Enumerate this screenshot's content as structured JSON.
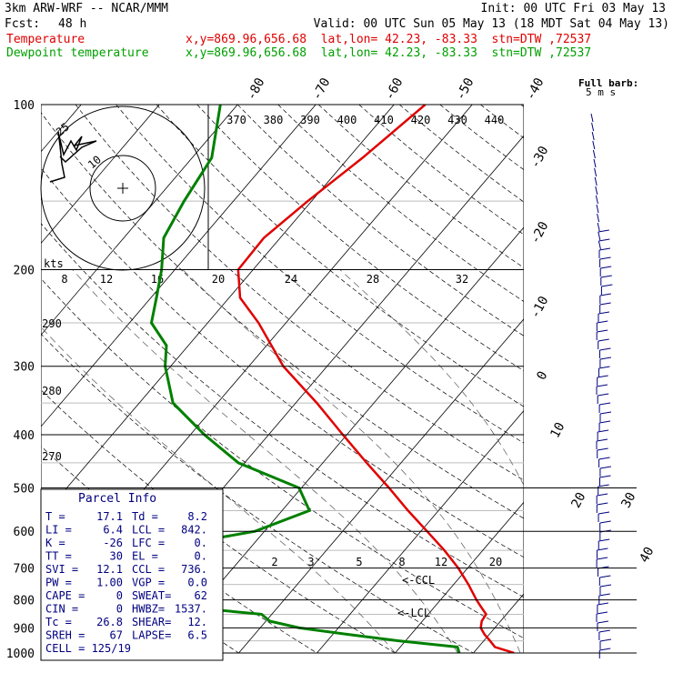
{
  "header": {
    "model": "3km ARW-WRF -- NCAR/MMM",
    "init": "Init: 00 UTC Fri 03 May 13",
    "fcst_label": "Fcst:",
    "fcst_value": "48 h",
    "valid": "Valid: 00 UTC Sun 05 May 13 (18 MDT Sat 04 May 13)",
    "temp_label": "Temperature",
    "dew_label": "Dewpoint temperature",
    "temp_info": "x,y=869.96,656.68  lat,lon= 42.23, -83.33  stn=DTW ,72537",
    "dew_info": "x,y=869.96,656.68  lat,lon= 42.23, -83.33  stn=DTW ,72537"
  },
  "colors": {
    "temperature": "#e00000",
    "dewpoint": "#008000",
    "wind": "#000080"
  },
  "chart_data": {
    "type": "line",
    "title": "",
    "ylabel": "",
    "y_scale": "log-pressure",
    "ylim": [
      1000,
      100
    ],
    "pressure_ticks": [
      "100",
      "200",
      "300",
      "400",
      "500",
      "600",
      "700",
      "800",
      "900",
      "1000"
    ],
    "isotherm_labels": [
      "-80",
      "-70",
      "-60",
      "-50",
      "-40",
      "-30",
      "-20",
      "-10",
      "0",
      "10",
      "20",
      "30",
      "40"
    ],
    "theta_labels": [
      "370",
      "380",
      "390",
      "400",
      "410",
      "420",
      "430",
      "440"
    ],
    "theta_left_labels": [
      "290",
      "280",
      "270"
    ],
    "mixing_ratio_labels": [
      "2",
      "3",
      "5",
      "8",
      "12",
      "20"
    ],
    "series": [
      {
        "name": "Temperature",
        "points": [
          [
            1000,
            15.2
          ],
          [
            975,
            12.1
          ],
          [
            950,
            10.8
          ],
          [
            925,
            9.4
          ],
          [
            900,
            8.2
          ],
          [
            875,
            7.6
          ],
          [
            850,
            7.4
          ],
          [
            825,
            6.0
          ],
          [
            800,
            4.6
          ],
          [
            750,
            1.9
          ],
          [
            700,
            -1.2
          ],
          [
            650,
            -4.9
          ],
          [
            600,
            -9.2
          ],
          [
            550,
            -13.9
          ],
          [
            500,
            -18.8
          ],
          [
            450,
            -24.4
          ],
          [
            400,
            -30.5
          ],
          [
            350,
            -37.3
          ],
          [
            300,
            -45.6
          ],
          [
            250,
            -53.5
          ],
          [
            225,
            -58.6
          ],
          [
            200,
            -61.9
          ],
          [
            175,
            -62.1
          ],
          [
            150,
            -60.5
          ],
          [
            125,
            -58.2
          ],
          [
            100,
            -56.0
          ]
        ]
      },
      {
        "name": "Dewpoint temperature",
        "points": [
          [
            1000,
            8.2
          ],
          [
            975,
            7.3
          ],
          [
            950,
            -0.9
          ],
          [
            925,
            -8.0
          ],
          [
            900,
            -15.0
          ],
          [
            875,
            -19.5
          ],
          [
            850,
            -21.3
          ],
          [
            825,
            -31.6
          ],
          [
            800,
            -43.8
          ],
          [
            750,
            -47.8
          ],
          [
            700,
            -51.7
          ],
          [
            650,
            -43.0
          ],
          [
            600,
            -31.2
          ],
          [
            550,
            -26.5
          ],
          [
            500,
            -30.3
          ],
          [
            450,
            -40.8
          ],
          [
            400,
            -48.2
          ],
          [
            350,
            -55.7
          ],
          [
            300,
            -60.7
          ],
          [
            275,
            -62.8
          ],
          [
            250,
            -67.2
          ],
          [
            225,
            -69.3
          ],
          [
            200,
            -71.7
          ],
          [
            175,
            -74.9
          ],
          [
            150,
            -76.3
          ],
          [
            125,
            -77.5
          ],
          [
            100,
            -82.2
          ]
        ]
      }
    ],
    "hodograph": {
      "unit_label": "kts",
      "ring_labels": [
        "10",
        "25"
      ],
      "speed_scale": [
        "8",
        "12",
        "16",
        "20",
        "24",
        "28",
        "32"
      ]
    },
    "wind_barb_key": "Full barb: 5 m s",
    "parcel_info": {
      "title": "Parcel Info",
      "rows": [
        [
          [
            "T =",
            "17.1"
          ],
          [
            "Td =",
            "8.2"
          ]
        ],
        [
          [
            "LI =",
            "6.4"
          ],
          [
            "LCL =",
            "842."
          ]
        ],
        [
          [
            "K =",
            "-26"
          ],
          [
            "LFC =",
            "0."
          ]
        ],
        [
          [
            "TT =",
            "30"
          ],
          [
            "EL =",
            "0."
          ]
        ],
        [
          [
            "SVI =",
            "12.1"
          ],
          [
            "CCL =",
            "736."
          ]
        ],
        [
          [
            "PW =",
            "1.00"
          ],
          [
            "VGP =",
            "0.0"
          ]
        ],
        [
          [
            "CAPE =",
            "0"
          ],
          [
            "SWEAT=",
            "62"
          ]
        ],
        [
          [
            "CIN =",
            "0"
          ],
          [
            "HWBZ=",
            "1537."
          ]
        ],
        [
          [
            "Tc =",
            "26.8"
          ],
          [
            "SHEAR=",
            "12."
          ]
        ],
        [
          [
            "SREH =",
            "67"
          ],
          [
            "LAPSE=",
            "6.5"
          ]
        ]
      ],
      "cell": "CELL = 125/19"
    },
    "annotations": {
      "ccl": "<-CCL",
      "lcl": "<-LCL"
    }
  }
}
